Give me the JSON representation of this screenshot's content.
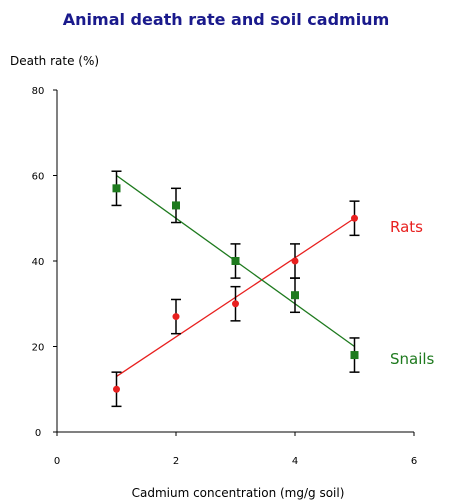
{
  "chart_data": {
    "type": "scatter",
    "title": "Animal death rate and soil cadmium",
    "xlabel": "Cadmium concentration (mg/g soil)",
    "ylabel": "Death rate (%)",
    "xlim": [
      0,
      6
    ],
    "ylim": [
      0,
      80
    ],
    "xticks": [
      "0",
      "2",
      "4",
      "6"
    ],
    "yticks": [
      "0",
      "20",
      "40",
      "60",
      "80"
    ],
    "grid": false,
    "legend": "inline labels at line ends",
    "series": [
      {
        "name": "Rats",
        "color": "#e8201f",
        "marker": "circle",
        "x": [
          1,
          2,
          3,
          4,
          5
        ],
        "y": [
          10,
          27,
          30,
          40,
          50
        ],
        "error": [
          4,
          4,
          4,
          4,
          4
        ],
        "fit": {
          "x": [
            1,
            5
          ],
          "y": [
            13,
            50
          ]
        }
      },
      {
        "name": "Snails",
        "color": "#1e7a1e",
        "marker": "square",
        "x": [
          1,
          2,
          3,
          4,
          5
        ],
        "y": [
          57,
          53,
          40,
          32,
          18
        ],
        "error": [
          4,
          4,
          4,
          4,
          4
        ],
        "fit": {
          "x": [
            1,
            5
          ],
          "y": [
            60,
            20
          ]
        }
      }
    ]
  }
}
